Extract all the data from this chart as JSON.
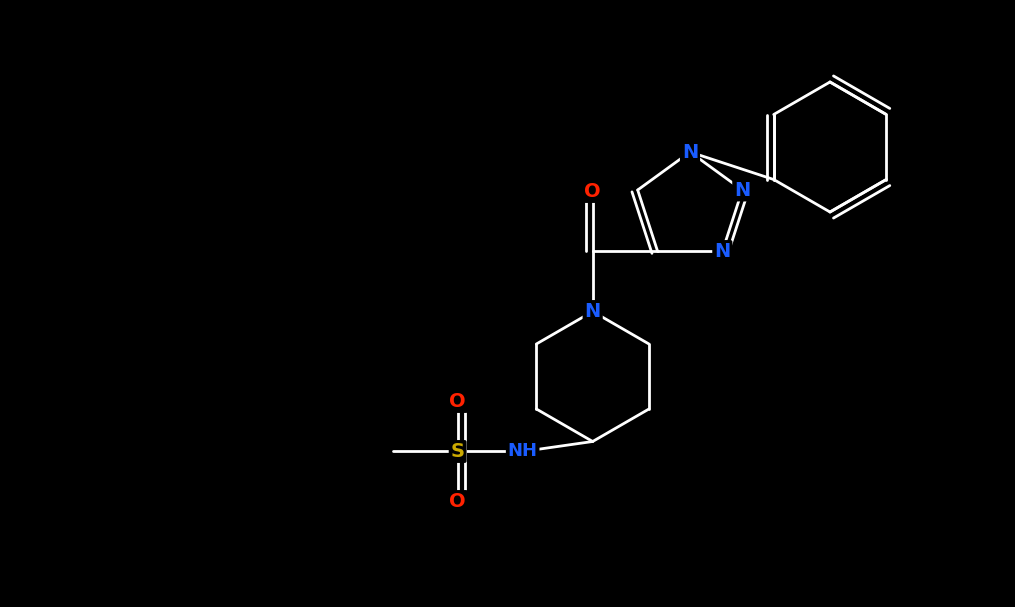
{
  "background_color": "#000000",
  "bond_color": "#ffffff",
  "atom_colors": {
    "C": "#ffffff",
    "N": "#1a5cff",
    "O": "#ff2200",
    "S": "#ccaa00",
    "H": "#ffffff"
  },
  "figsize": [
    10.15,
    6.07
  ],
  "dpi": 100
}
